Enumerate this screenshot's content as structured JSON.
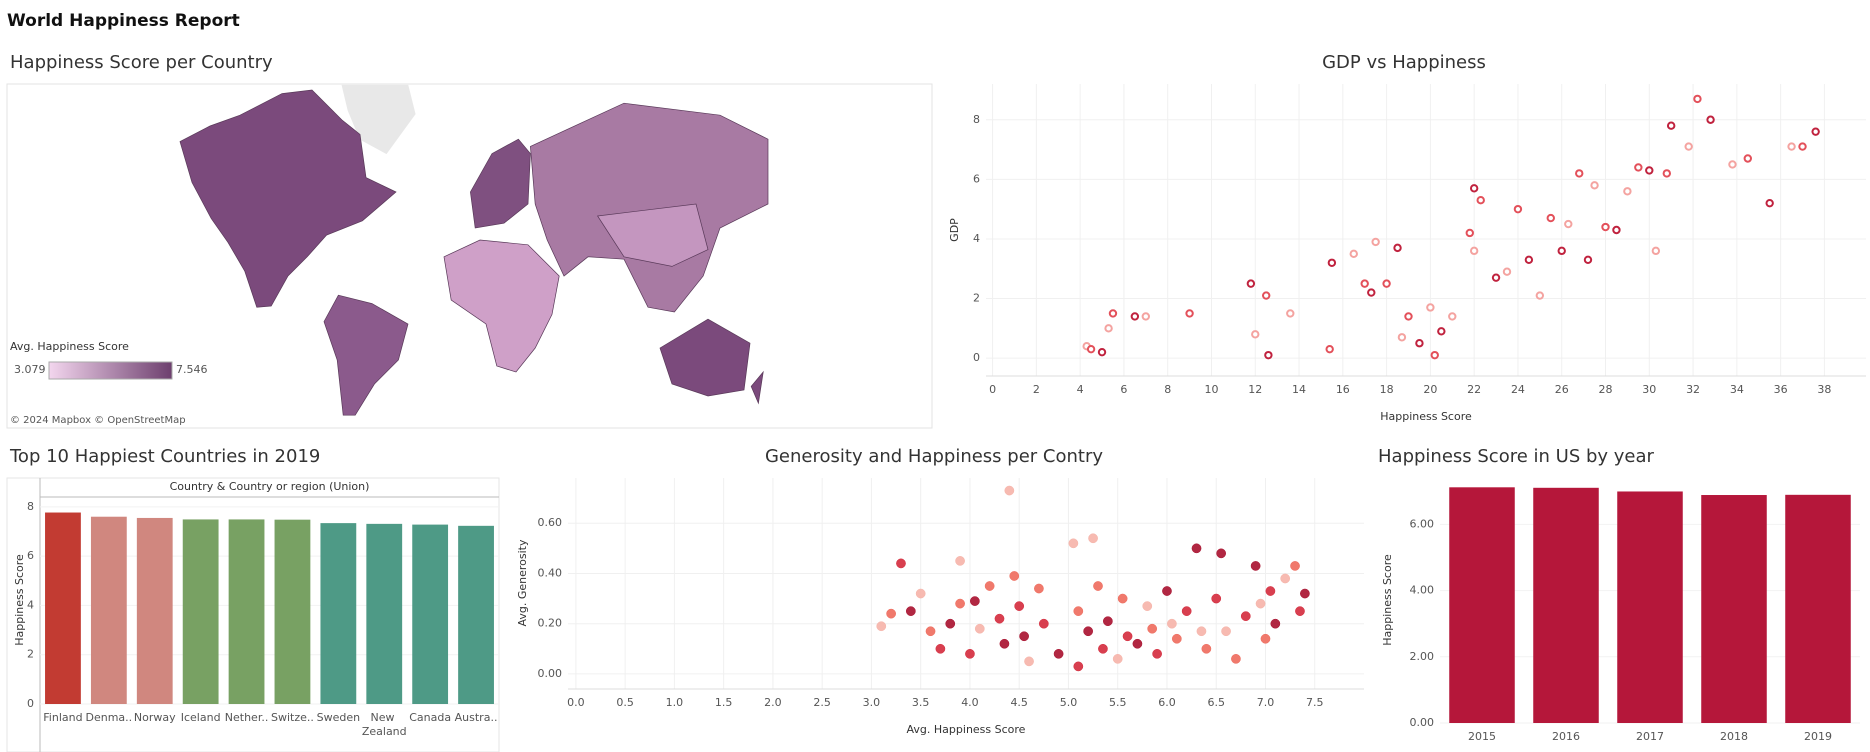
{
  "title": "World Happiness Report",
  "chart_data": [
    {
      "type": "map",
      "title": "Happiness Score per Country",
      "legend_title": "Avg. Happiness Score",
      "legend_min": 3.079,
      "legend_max": 7.546,
      "legend_colors": [
        "#f3d6ee",
        "#6d3f6e"
      ],
      "attribution": "© 2024 Mapbox © OpenStreetMap"
    },
    {
      "type": "scatter",
      "title": "GDP vs Happiness",
      "x_label": "Happiness Score",
      "y_label": "GDP",
      "marker": "hollow",
      "grid": true,
      "xlim": [
        -0.3,
        39.9
      ],
      "ylim": [
        -0.6,
        9.2
      ],
      "xticks": [
        0,
        2,
        4,
        6,
        8,
        10,
        12,
        14,
        16,
        18,
        20,
        22,
        24,
        26,
        28,
        30,
        32,
        34,
        36,
        38
      ],
      "yticks": [
        0,
        2,
        4,
        6,
        8
      ],
      "x": [
        4.3,
        4.5,
        5,
        5.3,
        5.5,
        6.5,
        7,
        9,
        11.8,
        12,
        12.5,
        12.6,
        13.6,
        15.4,
        15.5,
        16.5,
        17,
        17.3,
        17.5,
        18,
        18.5,
        18.7,
        19,
        19.5,
        20,
        20.2,
        20.5,
        21,
        21.8,
        22,
        22,
        22.3,
        23,
        23.5,
        24,
        24.5,
        25,
        25.5,
        26,
        26.3,
        26.8,
        27.2,
        27.5,
        28,
        28.5,
        29,
        29.5,
        30,
        30.3,
        30.8,
        31,
        31.8,
        32.2,
        32.8,
        33.8,
        34.5,
        35.5,
        36.5,
        37,
        37.6
      ],
      "values": [
        0.4,
        0.3,
        0.2,
        1,
        1.5,
        1.4,
        1.4,
        1.5,
        2.5,
        0.8,
        2.1,
        0.1,
        1.5,
        0.3,
        3.2,
        3.5,
        2.5,
        2.2,
        3.9,
        2.5,
        3.7,
        0.7,
        1.4,
        0.5,
        1.7,
        0.1,
        0.9,
        1.4,
        4.2,
        5.7,
        3.6,
        5.3,
        2.7,
        2.9,
        5,
        3.3,
        2.1,
        4.7,
        3.6,
        4.5,
        6.2,
        3.3,
        5.8,
        4.4,
        4.3,
        5.6,
        6.4,
        6.3,
        3.6,
        6.2,
        7.8,
        7.1,
        8.7,
        8,
        6.5,
        6.7,
        5.2,
        7.1,
        7.1,
        7.6
      ],
      "point_colors": [
        "#f4a3a0",
        "#e3505a",
        "#c0223e",
        "#f4a3a0",
        "#e3505a",
        "#c0223e",
        "#f4a3a0",
        "#e3505a",
        "#c0223e",
        "#f4a3a0",
        "#e3505a",
        "#c0223e",
        "#f4a3a0",
        "#e3505a",
        "#c0223e",
        "#f4a3a0",
        "#e3505a",
        "#c0223e",
        "#f4a3a0",
        "#e3505a",
        "#c0223e",
        "#f4a3a0",
        "#e3505a",
        "#c0223e",
        "#f4a3a0",
        "#e3505a",
        "#c0223e",
        "#f4a3a0",
        "#e3505a",
        "#c0223e",
        "#f4a3a0",
        "#e3505a",
        "#c0223e",
        "#f4a3a0",
        "#e3505a",
        "#c0223e",
        "#f4a3a0",
        "#e3505a",
        "#c0223e",
        "#f4a3a0",
        "#e3505a",
        "#c0223e",
        "#f4a3a0",
        "#e3505a",
        "#c0223e",
        "#f4a3a0",
        "#e3505a",
        "#c0223e",
        "#f4a3a0",
        "#e3505a",
        "#c0223e",
        "#f4a3a0",
        "#e3505a",
        "#c0223e",
        "#f4a3a0",
        "#e3505a",
        "#c0223e",
        "#f4a3a0",
        "#e3505a",
        "#c0223e"
      ]
    },
    {
      "type": "bar",
      "title": "Top 10 Happiest Countries in 2019",
      "header": "Country & Country or region (Union)",
      "y_label": "Happiness Score",
      "grid": true,
      "categories": [
        "Finland",
        "Denma..",
        "Norway",
        "Iceland",
        "Nether..",
        "Switze..",
        "Sweden",
        "New Zealand",
        "Canada",
        "Austra.."
      ],
      "values": [
        7.77,
        7.6,
        7.55,
        7.49,
        7.49,
        7.48,
        7.34,
        7.31,
        7.28,
        7.23
      ],
      "colors": [
        "#c23b32",
        "#d0877f",
        "#d0877f",
        "#78a163",
        "#78a163",
        "#78a163",
        "#4e9a86",
        "#4e9a86",
        "#4e9a86",
        "#4e9a86"
      ],
      "ylim": [
        0,
        8.4
      ],
      "yticks": [
        0,
        2,
        4,
        6,
        8
      ]
    },
    {
      "type": "scatter",
      "title": "Generosity and Happiness per Contry",
      "x_label": "Avg. Happiness Score",
      "y_label": "Avg. Generosity",
      "marker": "filled",
      "grid": true,
      "xlim": [
        -0.08,
        8.0
      ],
      "ylim": [
        -0.06,
        0.78
      ],
      "xticks": [
        {
          "value": 0,
          "label": "0.0"
        },
        0.5,
        {
          "value": 1,
          "label": "1.0"
        },
        1.5,
        {
          "value": 2,
          "label": "2.0"
        },
        2.5,
        {
          "value": 3,
          "label": "3.0"
        },
        3.5,
        {
          "value": 4,
          "label": "4.0"
        },
        4.5,
        {
          "value": 5,
          "label": "5.0"
        },
        5.5,
        {
          "value": 6,
          "label": "6.0"
        },
        6.5,
        {
          "value": 7,
          "label": "7.0"
        },
        7.5
      ],
      "yticks": [
        {
          "value": 0,
          "label": "0.00"
        },
        {
          "value": 0.2,
          "label": "0.20"
        },
        {
          "value": 0.4,
          "label": "0.40"
        },
        {
          "value": 0.6,
          "label": "0.60"
        }
      ],
      "x": [
        3.1,
        3.2,
        3.3,
        3.4,
        3.5,
        3.6,
        3.7,
        3.8,
        3.9,
        3.9,
        4.0,
        4.05,
        4.1,
        4.2,
        4.3,
        4.35,
        4.4,
        4.45,
        4.5,
        4.55,
        4.6,
        4.7,
        4.75,
        4.9,
        5.05,
        5.1,
        5.1,
        5.2,
        5.25,
        5.3,
        5.35,
        5.4,
        5.5,
        5.55,
        5.6,
        5.7,
        5.8,
        5.85,
        5.9,
        6.0,
        6.05,
        6.1,
        6.2,
        6.3,
        6.35,
        6.4,
        6.5,
        6.55,
        6.6,
        6.7,
        6.8,
        6.9,
        6.95,
        7.0,
        7.05,
        7.1,
        7.2,
        7.3,
        7.35,
        7.4
      ],
      "values": [
        0.19,
        0.24,
        0.44,
        0.25,
        0.32,
        0.17,
        0.1,
        0.2,
        0.45,
        0.28,
        0.08,
        0.29,
        0.18,
        0.35,
        0.22,
        0.12,
        0.73,
        0.39,
        0.27,
        0.15,
        0.05,
        0.34,
        0.2,
        0.08,
        0.52,
        0.25,
        0.03,
        0.17,
        0.54,
        0.35,
        0.1,
        0.21,
        0.06,
        0.3,
        0.15,
        0.12,
        0.27,
        0.18,
        0.08,
        0.33,
        0.2,
        0.14,
        0.25,
        0.5,
        0.17,
        0.1,
        0.3,
        0.48,
        0.17,
        0.06,
        0.23,
        0.43,
        0.28,
        0.14,
        0.33,
        0.2,
        0.38,
        0.43,
        0.25,
        0.32
      ],
      "point_colors": [
        "#f6b3a8",
        "#ee6a5c",
        "#d42a3c",
        "#a8102e",
        "#f6b3a8",
        "#ee6a5c",
        "#d42a3c",
        "#a8102e",
        "#f6b3a8",
        "#ee6a5c",
        "#d42a3c",
        "#a8102e",
        "#f6b3a8",
        "#ee6a5c",
        "#d42a3c",
        "#a8102e",
        "#f6b3a8",
        "#ee6a5c",
        "#d42a3c",
        "#a8102e",
        "#f6b3a8",
        "#ee6a5c",
        "#d42a3c",
        "#a8102e",
        "#f6b3a8",
        "#ee6a5c",
        "#d42a3c",
        "#a8102e",
        "#f6b3a8",
        "#ee6a5c",
        "#d42a3c",
        "#a8102e",
        "#f6b3a8",
        "#ee6a5c",
        "#d42a3c",
        "#a8102e",
        "#f6b3a8",
        "#ee6a5c",
        "#d42a3c",
        "#a8102e",
        "#f6b3a8",
        "#ee6a5c",
        "#d42a3c",
        "#a8102e",
        "#f6b3a8",
        "#ee6a5c",
        "#d42a3c",
        "#a8102e",
        "#f6b3a8",
        "#ee6a5c",
        "#d42a3c",
        "#a8102e",
        "#f6b3a8",
        "#ee6a5c",
        "#d42a3c",
        "#a8102e",
        "#f6b3a8",
        "#ee6a5c",
        "#d42a3c",
        "#a8102e"
      ]
    },
    {
      "type": "bar",
      "title": "Happiness Score in US by year",
      "y_label": "Happiness Score",
      "grid": true,
      "color": "#b5173a",
      "categories": [
        "2015",
        "2016",
        "2017",
        "2018",
        "2019"
      ],
      "values": [
        7.119,
        7.104,
        6.993,
        6.886,
        6.892
      ],
      "ylim": [
        0,
        7.4
      ],
      "yticks": [
        {
          "value": 0,
          "label": "0.00"
        },
        {
          "value": 2,
          "label": "2.00"
        },
        {
          "value": 4,
          "label": "4.00"
        },
        {
          "value": 6,
          "label": "6.00"
        }
      ]
    }
  ]
}
